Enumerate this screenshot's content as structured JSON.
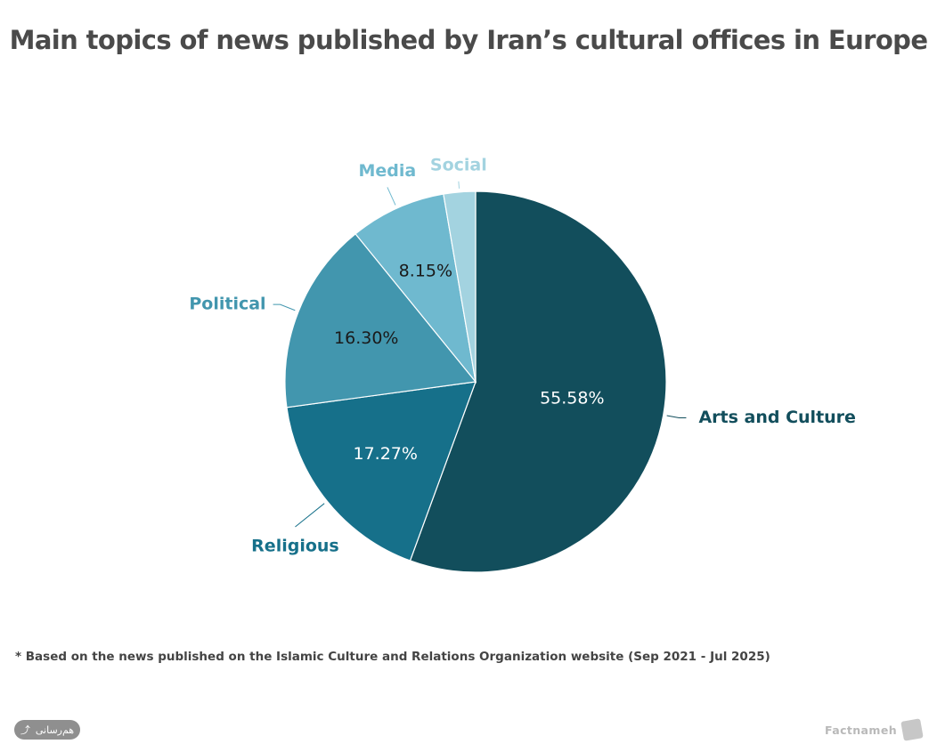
{
  "title": "Main topics of news published by Iran’s cultural offices in Europe",
  "footnote": "* Based on the news published on the Islamic Culture and Relations Organization website (Sep 2021 - Jul 2025)",
  "share": {
    "label": "هم‌رسانی",
    "icon": "share-icon"
  },
  "brand": {
    "name": "Factnameh",
    "icon": "factnameh-logo-icon"
  },
  "chart_data": {
    "type": "pie",
    "categories": [
      "Arts and Culture",
      "Religious",
      "Political",
      "Media",
      "Social"
    ],
    "values": [
      55.58,
      17.27,
      16.3,
      8.15,
      2.7
    ],
    "data_labels": [
      "55.58%",
      "17.27%",
      "16.30%",
      "8.15%",
      ""
    ],
    "colors": [
      "#124e5c",
      "#16708a",
      "#4296ae",
      "#6fb9cf",
      "#a3d3e0"
    ],
    "label_colors": [
      "#124e5c",
      "#16708a",
      "#4296ae",
      "#6fb9cf",
      "#a3d3e0"
    ],
    "data_label_colors": [
      "#ffffff",
      "#ffffff",
      "#1a1a1a",
      "#1a1a1a",
      "#1a1a1a"
    ],
    "start_angle": 0,
    "direction": "clockwise"
  }
}
